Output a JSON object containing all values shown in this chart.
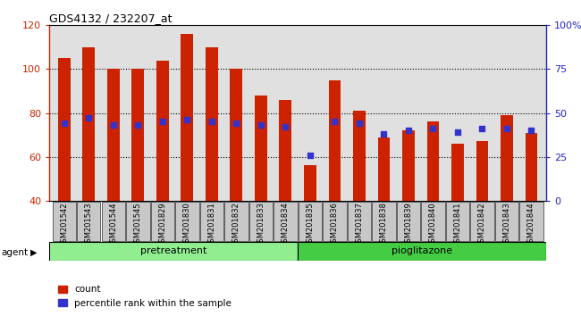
{
  "title": "GDS4132 / 232207_at",
  "samples": [
    "GSM201542",
    "GSM201543",
    "GSM201544",
    "GSM201545",
    "GSM201829",
    "GSM201830",
    "GSM201831",
    "GSM201832",
    "GSM201833",
    "GSM201834",
    "GSM201835",
    "GSM201836",
    "GSM201837",
    "GSM201838",
    "GSM201839",
    "GSM201840",
    "GSM201841",
    "GSM201842",
    "GSM201843",
    "GSM201844"
  ],
  "counts": [
    105,
    110,
    100,
    100,
    104,
    116,
    110,
    100,
    88,
    86,
    56,
    95,
    81,
    69,
    72,
    76,
    66,
    67,
    79,
    71
  ],
  "percentiles": [
    44,
    47,
    43,
    43,
    45,
    46,
    45,
    44,
    43,
    42,
    26,
    45,
    44,
    38,
    40,
    41,
    39,
    41,
    41,
    40
  ],
  "ylim_left": [
    40,
    120
  ],
  "ylim_right": [
    0,
    100
  ],
  "yticks_left": [
    40,
    60,
    80,
    100,
    120
  ],
  "yticks_right": [
    0,
    25,
    50,
    75,
    100
  ],
  "ytick_labels_right": [
    "0",
    "25",
    "50",
    "75",
    "100%"
  ],
  "pretreatment_count": 10,
  "pioglitazone_count": 10,
  "bar_color": "#CC2200",
  "dot_color": "#3333CC",
  "group_color_pretreatment": "#90EE90",
  "group_color_pioglitazone": "#44CC44",
  "bar_width": 0.5,
  "legend_count_label": "count",
  "legend_pct_label": "percentile rank within the sample",
  "agent_label": "agent",
  "pretreatment_label": "pretreatment",
  "pioglitazone_label": "pioglitazone"
}
